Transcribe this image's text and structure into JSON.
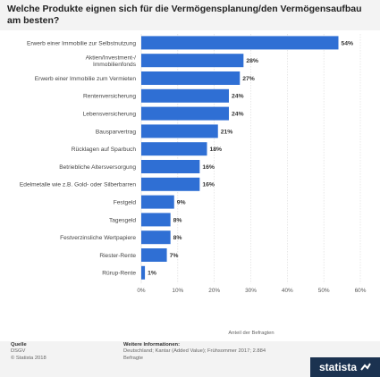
{
  "title": "Welche Produkte eignen sich für die Vermögensplanung/den Vermögensaufbau am besten?",
  "chart_data": {
    "type": "bar",
    "orientation": "horizontal",
    "categories": [
      "Erwerb einer Immobilie zur Selbstnutzung",
      "Aktien/Investment-/ Immobilienfonds",
      "Erwerb einer Immobilie zum Vermieten",
      "Rentenversicherung",
      "Lebensversicherung",
      "Bausparvertrag",
      "Rücklagen auf Sparbuch",
      "Betriebliche Altersversorgung",
      "Edelmetalle wie z.B. Gold- oder Silberbarren",
      "Festgeld",
      "Tagesgeld",
      "Festverzinsliche Wertpapiere",
      "Riester-Rente",
      "Rürup-Rente"
    ],
    "values": [
      54,
      28,
      27,
      24,
      24,
      21,
      18,
      16,
      16,
      9,
      8,
      8,
      7,
      1
    ],
    "value_labels": [
      "54%",
      "28%",
      "27%",
      "24%",
      "24%",
      "21%",
      "18%",
      "16%",
      "16%",
      "9%",
      "8%",
      "8%",
      "7%",
      "1%"
    ],
    "xlabel": "Anteil der Befragten",
    "xlim": [
      0,
      60
    ],
    "xticks": [
      0,
      10,
      20,
      30,
      40,
      50,
      60
    ],
    "xtick_labels": [
      "0%",
      "10%",
      "20%",
      "30%",
      "40%",
      "50%",
      "60%"
    ],
    "grid": true,
    "bar_color": "#2f6fd4"
  },
  "footer": {
    "source_heading": "Quelle",
    "source_lines": [
      "DSGV",
      "© Statista 2018"
    ],
    "info_heading": "Weitere Informationen:",
    "info_lines": [
      "Deutschland; Kantar (Added Value); Frühsommer 2017; 2.884",
      "Befragte"
    ]
  },
  "brand": {
    "name": "statista",
    "icon": "statista-logo-icon"
  },
  "colors": {
    "bar": "#2f6fd4",
    "grid": "#d9d9d9",
    "brand_bg": "#1b3250"
  }
}
